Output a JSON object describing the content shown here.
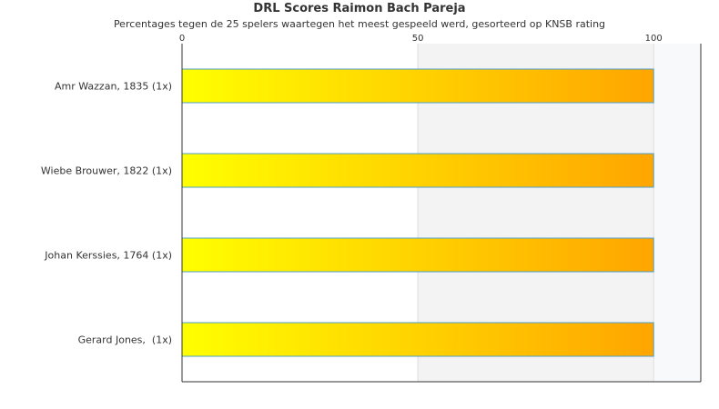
{
  "chart_data": {
    "type": "bar",
    "orientation": "horizontal",
    "title": "DRL Scores Raimon Bach Pareja",
    "subtitle": "Percentages tegen de 25 spelers waartegen het meest gespeeld werd, gesorteerd op KNSB rating",
    "categories": [
      "Amr Wazzan, 1835 (1x)",
      "Wiebe Brouwer, 1822 (1x)",
      "Johan Kerssies, 1764 (1x)",
      "Gerard Jones,  (1x)"
    ],
    "values": [
      100,
      100,
      100,
      100
    ],
    "xlim": [
      0,
      110
    ],
    "xticks": [
      0,
      50,
      100
    ],
    "xticks_position": "top",
    "grid": true,
    "colors": {
      "bar_gradient_start": "#ffff00",
      "bar_gradient_end": "#ffa500",
      "bar_border": "#4d9fcf",
      "band_light": "#f3f3f3",
      "band_lighter": "#f8f9fb"
    }
  }
}
